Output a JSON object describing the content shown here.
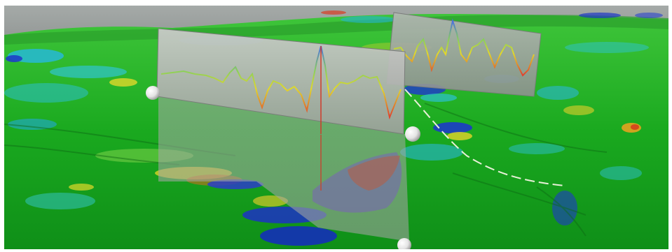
{
  "scene": {
    "kind": "3d-terrain-viewer",
    "sky_color": "#9da2a0",
    "terrain_base_color": "#18b21c",
    "anomaly_colors": {
      "low": "#1730c8",
      "mid_low": "#22b5d8",
      "mid": "#35d12e",
      "mid_high": "#e0e01a",
      "high": "#e0401a"
    },
    "profile_panels": [
      {
        "id": "panel-front",
        "panel_color": "#9a9d9a",
        "curve_colors": [
          "#e0d020",
          "#e04040",
          "#4080e0"
        ]
      },
      {
        "id": "panel-back",
        "panel_color": "#8d918e",
        "curve_colors": [
          "#e0d020",
          "#e04040",
          "#4080e0"
        ]
      }
    ],
    "handles": [
      {
        "id": "handle-left",
        "color": "#f2f2f2"
      },
      {
        "id": "handle-right",
        "color": "#f2f2f2"
      },
      {
        "id": "handle-bottom",
        "color": "#f2f2f2"
      }
    ],
    "survey_line_color": "#e8f0d8"
  }
}
